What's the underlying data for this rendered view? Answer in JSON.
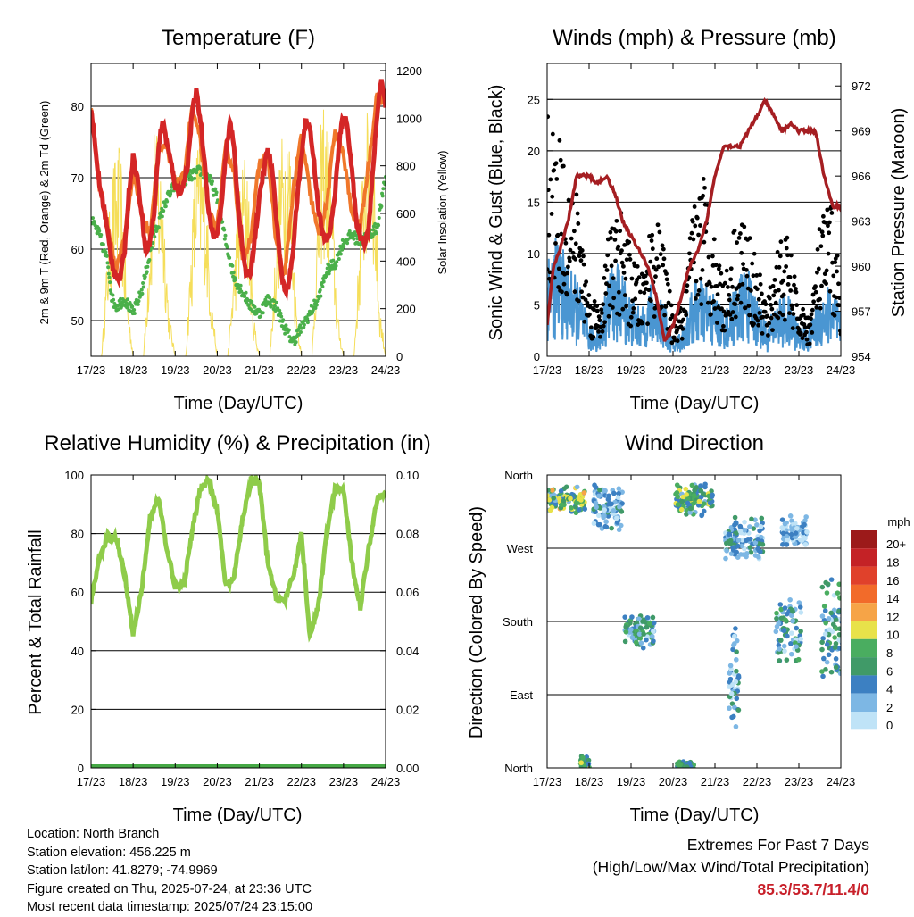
{
  "chart_data": [
    {
      "type": "line",
      "title": "Temperature (F)",
      "xlabel": "Time (Day/UTC)",
      "ylabel": "2m & 9m T (Red, Orange) & 2m Td (Green)",
      "ylabel_right": "Solar Insolation (Yellow)",
      "x_ticks": [
        "17/23",
        "18/23",
        "19/23",
        "20/23",
        "21/23",
        "22/23",
        "23/23",
        "24/23"
      ],
      "ylim": [
        45,
        86
      ],
      "y_ticks": [
        50,
        60,
        70,
        80
      ],
      "y2lim": [
        0,
        1230
      ],
      "y2_ticks": [
        0,
        200,
        400,
        600,
        800,
        1000,
        1200
      ],
      "colors": {
        "t2m": "#d42626",
        "t9m": "#f0772a",
        "td2m": "#4ab04a",
        "solar": "#f5de5a"
      },
      "series": [
        {
          "x": [
            0,
            0.1,
            0.2,
            0.3,
            0.4,
            0.5,
            0.6,
            0.7,
            0.8,
            0.9,
            1.0,
            1.1,
            1.2,
            1.3,
            1.4,
            1.5,
            1.6,
            1.7,
            1.8,
            1.9,
            2.0,
            2.1,
            2.2,
            2.3,
            2.4,
            2.5,
            2.6,
            2.7,
            2.8,
            2.9,
            3.0,
            3.1,
            3.2,
            3.3,
            3.4,
            3.5,
            3.6,
            3.7,
            3.8,
            3.9,
            4.0,
            4.1,
            4.2,
            4.3,
            4.4,
            4.5,
            4.6,
            4.7,
            4.8,
            4.9,
            5.0,
            5.1,
            5.2,
            5.3,
            5.4,
            5.5,
            5.6,
            5.7,
            5.8,
            5.9,
            6.0,
            6.1,
            6.2,
            6.3,
            6.4,
            6.5,
            6.6,
            6.7,
            6.8,
            6.9,
            7.0
          ],
          "values": [
            80,
            74,
            69,
            66,
            62,
            58,
            56,
            56,
            60,
            68,
            73,
            70,
            65,
            60,
            61,
            65,
            74,
            78,
            75,
            72,
            69,
            68,
            69,
            72,
            79,
            82,
            78,
            72,
            65,
            62,
            62,
            66,
            73,
            78,
            74,
            66,
            60,
            56,
            57,
            62,
            67,
            71,
            74,
            71,
            65,
            58,
            54,
            55,
            60,
            67,
            73,
            78,
            77,
            72,
            66,
            62,
            61,
            63,
            68,
            75,
            79,
            77,
            71,
            64,
            62,
            61,
            63,
            71,
            79,
            84,
            80
          ]
        },
        {
          "x": [
            0,
            0.2,
            0.4,
            0.6,
            0.8,
            1.0,
            1.2,
            1.4,
            1.6,
            1.8,
            2.0,
            2.2,
            2.4,
            2.6,
            2.8,
            3.0,
            3.2,
            3.4,
            3.6,
            3.8,
            4.0,
            4.2,
            4.4,
            4.6,
            4.8,
            5.0,
            5.2,
            5.4,
            5.6,
            5.8,
            6.0,
            6.2,
            6.4,
            6.6,
            6.8,
            7.0
          ],
          "values": [
            80,
            69,
            63,
            57,
            62,
            71,
            65,
            62,
            74,
            74,
            69,
            70,
            80,
            75,
            65,
            63,
            74,
            71,
            58,
            62,
            72,
            73,
            61,
            56,
            68,
            76,
            68,
            62,
            66,
            77,
            73,
            65,
            63,
            72,
            82,
            80
          ]
        },
        {
          "x": [
            0,
            0.2,
            0.4,
            0.5,
            0.6,
            0.8,
            1.0,
            1.2,
            1.5,
            1.8,
            2.0,
            2.3,
            2.6,
            2.8,
            3.0,
            3.2,
            3.4,
            3.6,
            3.8,
            4.0,
            4.2,
            4.4,
            4.6,
            4.8,
            5.0,
            5.2,
            5.4,
            5.6,
            5.8,
            6.0,
            6.2,
            6.4,
            6.6,
            6.8,
            7.0
          ],
          "values": [
            64,
            62,
            58,
            53,
            52,
            53,
            51,
            54,
            62,
            67,
            69,
            70,
            71,
            70,
            67,
            61,
            56,
            54,
            52,
            51,
            53,
            52,
            49,
            47,
            49,
            51,
            53,
            57,
            58,
            61,
            62,
            61,
            62,
            63,
            70
          ]
        },
        {
          "x": [
            0,
            0.25,
            0.5,
            0.7,
            0.85,
            1.0,
            1.25,
            1.5,
            1.7,
            1.85,
            2.0,
            2.25,
            2.5,
            2.7,
            2.85,
            3.0,
            3.25,
            3.5,
            3.7,
            3.85,
            4.0,
            4.25,
            4.5,
            4.7,
            4.85,
            5.0,
            5.25,
            5.5,
            5.7,
            5.85,
            6.0,
            6.25,
            6.5,
            6.7,
            6.85,
            7.0
          ],
          "values": [
            0,
            0,
            820,
            900,
            300,
            0,
            0,
            1000,
            800,
            200,
            0,
            0,
            950,
            850,
            300,
            0,
            0,
            700,
            950,
            200,
            0,
            0,
            900,
            1100,
            300,
            0,
            0,
            1150,
            850,
            200,
            0,
            0,
            1000,
            1100,
            250,
            0
          ]
        }
      ]
    },
    {
      "type": "line",
      "title": "Winds (mph) & Pressure (mb)",
      "xlabel": "Time (Day/UTC)",
      "ylabel": "Sonic Wind & Gust (Blue, Black)",
      "ylabel_right": "Station Pressure (Maroon)",
      "x_ticks": [
        "17/23",
        "18/23",
        "19/23",
        "20/23",
        "21/23",
        "22/23",
        "23/23",
        "24/23"
      ],
      "ylim": [
        0,
        28.5
      ],
      "y_ticks": [
        0,
        5,
        10,
        15,
        20,
        25
      ],
      "y2lim": [
        954,
        973.5
      ],
      "y2_ticks": [
        954,
        957,
        960,
        963,
        966,
        969,
        972
      ],
      "colors": {
        "wind": "#4a96d2",
        "gust": "#000000",
        "pressure": "#a51e22"
      },
      "series": [
        {
          "x": [
            0,
            0.25,
            0.5,
            0.75,
            1.0,
            1.25,
            1.5,
            1.75,
            2.0,
            2.25,
            2.5,
            2.75,
            3.0,
            3.25,
            3.5,
            3.75,
            4.0,
            4.25,
            4.5,
            4.75,
            5.0,
            5.25,
            5.5,
            5.75,
            6.0,
            6.25,
            6.5,
            6.75,
            7.0
          ],
          "values": [
            7,
            8,
            6,
            5,
            2,
            2,
            6,
            6,
            4,
            3,
            5,
            4,
            1,
            2,
            5,
            5,
            4,
            3,
            5,
            6,
            4,
            2,
            4,
            4,
            2,
            2,
            4,
            5,
            3
          ]
        },
        {
          "x": [
            0,
            0.25,
            0.5,
            0.75,
            1.0,
            1.25,
            1.5,
            1.75,
            2.0,
            2.25,
            2.5,
            2.75,
            3.0,
            3.25,
            3.5,
            3.75,
            4.0,
            4.25,
            4.5,
            4.75,
            5.0,
            5.25,
            5.5,
            5.75,
            6.0,
            6.25,
            6.5,
            6.75,
            7.0
          ],
          "values": [
            18,
            17,
            14,
            12,
            5,
            4,
            10,
            11,
            8,
            6,
            11,
            9,
            3,
            4,
            12,
            14,
            9,
            6,
            11,
            10,
            7,
            4,
            9,
            9,
            4,
            3,
            10,
            12,
            6
          ]
        },
        {
          "x": [
            0,
            0.15,
            0.3,
            0.5,
            0.7,
            0.85,
            1.0,
            1.2,
            1.4,
            1.6,
            1.8,
            2.0,
            2.2,
            2.4,
            2.6,
            2.8,
            3.0,
            3.2,
            3.4,
            3.6,
            3.8,
            4.0,
            4.2,
            4.4,
            4.6,
            4.8,
            5.0,
            5.2,
            5.4,
            5.6,
            5.8,
            6.0,
            6.2,
            6.4,
            6.6,
            6.8,
            7.0
          ],
          "values": [
            956,
            960,
            961,
            963,
            966,
            966,
            966,
            965.5,
            966,
            965,
            963,
            962,
            961,
            960,
            958,
            955,
            956,
            958,
            960,
            961,
            963,
            966,
            968,
            968,
            968,
            969,
            970,
            971,
            970,
            969,
            969.5,
            969,
            969,
            969,
            966,
            964,
            964
          ]
        }
      ]
    },
    {
      "type": "line",
      "title": "Relative Humidity (%) & Precipitation (in)",
      "xlabel": "Time (Day/UTC)",
      "ylabel": "Percent & Total Rainfall",
      "x_ticks": [
        "17/23",
        "18/23",
        "19/23",
        "20/23",
        "21/23",
        "22/23",
        "23/23",
        "24/23"
      ],
      "ylim": [
        0,
        100
      ],
      "y_ticks": [
        0,
        20,
        40,
        60,
        80,
        100
      ],
      "y2lim": [
        0,
        0.1
      ],
      "y2_ticks": [
        "0.00",
        "0.02",
        "0.04",
        "0.06",
        "0.08",
        "0.10"
      ],
      "colors": {
        "rh": "#8fcc4a",
        "precip": "#45a845"
      },
      "series": [
        {
          "x": [
            0,
            0.2,
            0.4,
            0.6,
            0.8,
            1.0,
            1.2,
            1.4,
            1.6,
            1.8,
            2.0,
            2.2,
            2.4,
            2.6,
            2.8,
            3.0,
            3.2,
            3.4,
            3.6,
            3.8,
            4.0,
            4.2,
            4.4,
            4.6,
            4.8,
            5.0,
            5.2,
            5.4,
            5.6,
            5.8,
            6.0,
            6.2,
            6.4,
            6.6,
            6.8,
            7.0
          ],
          "values": [
            57,
            72,
            79,
            78,
            66,
            46,
            60,
            85,
            92,
            75,
            62,
            62,
            80,
            96,
            98,
            88,
            62,
            65,
            85,
            98,
            97,
            70,
            58,
            57,
            65,
            80,
            45,
            55,
            80,
            95,
            95,
            70,
            55,
            75,
            92,
            95
          ]
        },
        {
          "x": [
            0,
            7
          ],
          "values": [
            0,
            0
          ]
        }
      ]
    },
    {
      "type": "scatter",
      "title": "Wind Direction",
      "xlabel": "Time (Day/UTC)",
      "ylabel": "Direction (Colored By Speed)",
      "x_ticks": [
        "17/23",
        "18/23",
        "19/23",
        "20/23",
        "21/23",
        "22/23",
        "23/23",
        "24/23"
      ],
      "y_ticks": [
        "North",
        "East",
        "South",
        "West",
        "North"
      ],
      "ylim": [
        0,
        360
      ],
      "legend": {
        "title": "mph",
        "placement": "right",
        "labels": [
          "20+",
          "18",
          "16",
          "14",
          "12",
          "10",
          "8",
          "6",
          "4",
          "2",
          "0"
        ],
        "colors": [
          "#9c1a1a",
          "#c42226",
          "#e0412b",
          "#f26b2a",
          "#f6a447",
          "#e8e24a",
          "#4aad60",
          "#409a68",
          "#3c80c2",
          "#7db7e4",
          "#bfe3f7"
        ]
      },
      "clusters": [
        {
          "x": 0.45,
          "y": 330,
          "spread_x": 0.45,
          "spread_y": 18,
          "speed": [
            2,
            12
          ]
        },
        {
          "x": 1.45,
          "y": 320,
          "spread_x": 0.35,
          "spread_y": 30,
          "speed": [
            0,
            6
          ]
        },
        {
          "x": 2.2,
          "y": 170,
          "spread_x": 0.35,
          "spread_y": 25,
          "speed": [
            0,
            8
          ]
        },
        {
          "x": 3.5,
          "y": 330,
          "spread_x": 0.45,
          "spread_y": 22,
          "speed": [
            2,
            10
          ]
        },
        {
          "x": 4.7,
          "y": 280,
          "spread_x": 0.45,
          "spread_y": 30,
          "speed": [
            0,
            6
          ]
        },
        {
          "x": 5.9,
          "y": 290,
          "spread_x": 0.3,
          "spread_y": 20,
          "speed": [
            0,
            4
          ]
        },
        {
          "x": 4.45,
          "y": 110,
          "spread_x": 0.12,
          "spread_y": 70,
          "speed": [
            0,
            6
          ]
        },
        {
          "x": 5.75,
          "y": 170,
          "spread_x": 0.3,
          "spread_y": 45,
          "speed": [
            0,
            8
          ]
        },
        {
          "x": 6.8,
          "y": 170,
          "spread_x": 0.25,
          "spread_y": 70,
          "speed": [
            0,
            8
          ]
        },
        {
          "x": 0.9,
          "y": 5,
          "spread_x": 0.1,
          "spread_y": 10,
          "speed": [
            4,
            10
          ]
        },
        {
          "x": 3.3,
          "y": 3,
          "spread_x": 0.2,
          "spread_y": 5,
          "speed": [
            4,
            8
          ]
        }
      ]
    }
  ],
  "info": {
    "location": "Location: North Branch",
    "elevation": "Station elevation: 456.225 m",
    "latlon": "Station lat/lon: 41.8279; -74.9969",
    "created": "Figure created on Thu, 2025-07-24, at 23:36 UTC",
    "recent": "Most recent data timestamp: 2025/07/24 23:15:00"
  },
  "extremes": {
    "line1": "Extremes For Past 7 Days",
    "line2": "(High/Low/Max Wind/Total Precipitation)",
    "value": "85.3/53.7/11.4/0"
  }
}
